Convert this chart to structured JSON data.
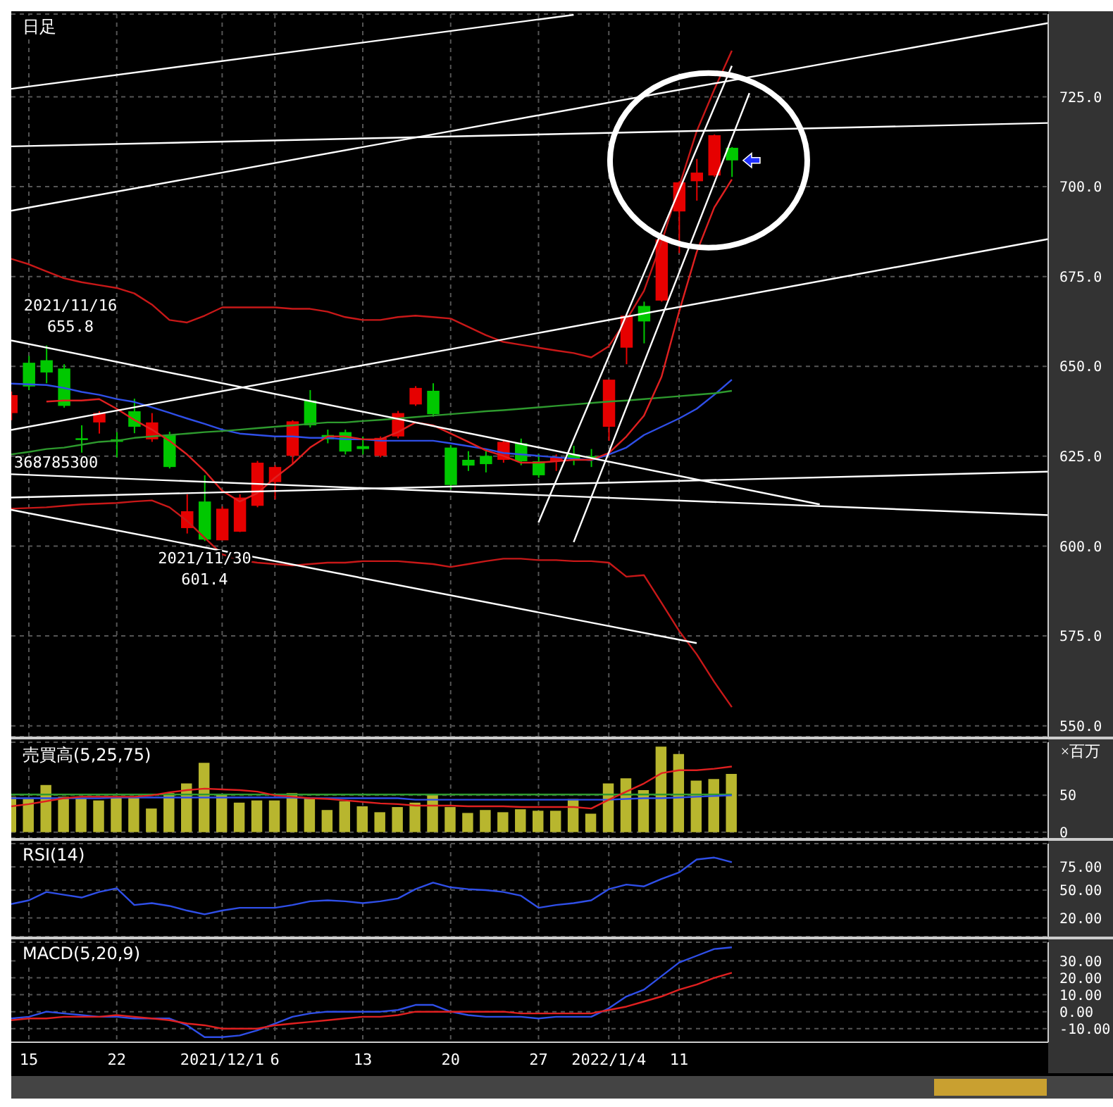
{
  "chart_data": [
    {
      "type": "candlestick",
      "title": "日足",
      "tick_labels": "y",
      "grid": true,
      "categories": [
        null,
        "15",
        null,
        null,
        null,
        null,
        "22",
        null,
        null,
        null,
        null,
        null,
        "2021/12/1",
        null,
        null,
        "6",
        null,
        null,
        null,
        null,
        "13",
        null,
        null,
        null,
        null,
        "20",
        null,
        null,
        null,
        null,
        "27",
        null,
        null,
        null,
        "2022/1/4",
        null,
        null,
        null,
        "11",
        null,
        null,
        null,
        null,
        null,
        null,
        null,
        null,
        null,
        null,
        null,
        null,
        null,
        null,
        null,
        null,
        null,
        null,
        null,
        null,
        null
      ],
      "ohlc": [
        [
          637,
          643,
          635,
          642
        ],
        [
          651,
          652.9,
          643.4,
          644.4
        ],
        [
          651.7,
          655.8,
          645.3,
          648.3
        ],
        [
          649.4,
          650.6,
          638.5,
          639
        ],
        [
          630,
          633.6,
          626,
          629.5
        ],
        [
          634.4,
          637.5,
          631.3,
          637
        ],
        [
          629.7,
          631.7,
          624.7,
          629
        ],
        [
          637.5,
          641,
          631.4,
          633.2
        ],
        [
          629.7,
          637,
          629,
          634.4
        ],
        [
          630.9,
          631.8,
          621.6,
          622
        ],
        [
          605,
          614.4,
          603.5,
          609.7
        ],
        [
          612.4,
          619.7,
          601.4,
          601.8
        ],
        [
          601.6,
          611,
          601.6,
          610.4
        ],
        [
          604,
          614.4,
          603.9,
          613.5
        ],
        [
          611.2,
          623.7,
          610.8,
          623.2
        ],
        [
          617.8,
          622.5,
          613,
          622
        ],
        [
          625.1,
          635,
          622.8,
          634.7
        ],
        [
          640.5,
          643.4,
          633,
          633.6
        ],
        [
          630.9,
          632.4,
          628.6,
          629.7
        ],
        [
          631.7,
          632.4,
          625.5,
          626.3
        ],
        [
          627.8,
          630.5,
          625.5,
          627
        ],
        [
          625.1,
          630.5,
          624.7,
          630.1
        ],
        [
          630.5,
          637.6,
          630,
          637
        ],
        [
          639.4,
          644.5,
          639,
          644
        ],
        [
          643.2,
          645.3,
          636,
          636.7
        ],
        [
          627.4,
          628,
          615.8,
          617
        ],
        [
          624,
          626.4,
          620.9,
          622.4
        ],
        [
          625.1,
          626.4,
          620.5,
          622.8
        ],
        [
          624,
          629.7,
          623.2,
          629
        ],
        [
          628.6,
          629.9,
          622.5,
          623.6
        ],
        [
          623.6,
          625.6,
          619,
          619.7
        ],
        [
          623.6,
          625.5,
          620.9,
          624.7
        ],
        [
          625.5,
          627.9,
          622.5,
          624.3
        ],
        [
          625,
          627,
          622,
          624.6
        ],
        [
          633.2,
          646.3,
          629.3,
          646.3
        ],
        [
          655.2,
          664.5,
          650.6,
          664.1
        ],
        [
          666.8,
          668,
          656.4,
          662.5
        ],
        [
          668.3,
          686,
          668,
          685.3
        ],
        [
          693.1,
          701.5,
          681.5,
          701.2
        ],
        [
          701.5,
          707.7,
          696.1,
          703.9
        ],
        [
          703.1,
          714.5,
          702.7,
          714.3
        ],
        [
          710.8,
          711,
          702.7,
          707.3
        ],
        null,
        null,
        null,
        null,
        null,
        null,
        null,
        null,
        null,
        null,
        null,
        null,
        null,
        null,
        null,
        null,
        null,
        null
      ],
      "colors": [
        "#e60000",
        "#00c800",
        "#00c800",
        "#00c800",
        "#00c800",
        "#e60000",
        "#00c800",
        "#00c800",
        "#e60000",
        "#00c800",
        "#e60000",
        "#00c800",
        "#e60000",
        "#e60000",
        "#e60000",
        "#e60000",
        "#e60000",
        "#00c800",
        "#00c800",
        "#00c800",
        "#00c800",
        "#e60000",
        "#e60000",
        "#e60000",
        "#00c800",
        "#00c800",
        "#00c800",
        "#00c800",
        "#e60000",
        "#00c800",
        "#00c800",
        "#e60000",
        "#00c800",
        "#00c800",
        "#e60000",
        "#e60000",
        "#00c800",
        "#e60000",
        "#e60000",
        "#e60000",
        "#e60000",
        "#00c800",
        null,
        null,
        null,
        null,
        null,
        null,
        null,
        null,
        null,
        null,
        null,
        null,
        null,
        null,
        null,
        null,
        null,
        null
      ],
      "series": [
        {
          "type": "line",
          "color": "#2f4fe8",
          "values": [
            645.2,
            645.0,
            644.8,
            644.0,
            642.9,
            642.1,
            640.9,
            640.1,
            638.6,
            637.1,
            635.5,
            634.0,
            632.4,
            631.3,
            630.9,
            630.5,
            630.5,
            630.1,
            630.1,
            629.7,
            629.7,
            629.3,
            629.3,
            629.3,
            629.3,
            628.6,
            627.8,
            627.0,
            625.9,
            625.5,
            625.1,
            624.7,
            624.3,
            623.9,
            625.5,
            627.4,
            630.9,
            633.2,
            635.5,
            638.2,
            642.1,
            646.3,
            null,
            null,
            null,
            null,
            null,
            null,
            null,
            null,
            null,
            null,
            null,
            null,
            null,
            null,
            null,
            null,
            null,
            null
          ]
        },
        {
          "type": "line",
          "color": "#2e9a2e",
          "values": [
            625.5,
            626.2,
            627.0,
            627.4,
            628.2,
            629.0,
            629.3,
            630.1,
            630.5,
            630.9,
            631.3,
            631.7,
            632.0,
            632.4,
            632.8,
            633.2,
            633.6,
            634.0,
            634.4,
            634.4,
            634.8,
            635.1,
            635.5,
            635.9,
            636.3,
            636.7,
            637.1,
            637.5,
            637.8,
            638.2,
            638.6,
            639.0,
            639.4,
            639.8,
            640.2,
            640.5,
            640.9,
            641.3,
            641.7,
            642.1,
            642.5,
            643.2,
            null,
            null,
            null,
            null,
            null,
            null,
            null,
            null,
            null,
            null,
            null,
            null,
            null,
            null,
            null,
            null,
            null,
            null
          ]
        },
        {
          "type": "line",
          "color": "#e02020",
          "values": [
            null,
            null,
            640.2,
            640.5,
            640.5,
            640.9,
            638.2,
            635.1,
            632.4,
            629.3,
            625.5,
            620.9,
            615.4,
            612.4,
            614.7,
            619.0,
            622.8,
            627.4,
            630.5,
            630.5,
            629.7,
            629.7,
            631.7,
            634.4,
            633.6,
            631.3,
            629.0,
            626.6,
            625.1,
            623.2,
            623.2,
            623.6,
            624.0,
            624.0,
            625.9,
            630.5,
            636.3,
            647.1,
            665.2,
            681.8,
            694.2,
            702.0,
            null,
            null,
            null,
            null,
            null,
            null,
            null,
            null,
            null,
            null,
            null,
            null,
            null,
            null,
            null,
            null,
            null,
            null
          ]
        },
        {
          "type": "line",
          "color": "#c81818",
          "values": [
            679.9,
            678.4,
            676.4,
            674.5,
            673.4,
            672.6,
            671.8,
            670.3,
            667.2,
            662.9,
            662.2,
            664.1,
            666.4,
            666.4,
            666.4,
            666.4,
            666.0,
            666.0,
            665.2,
            663.7,
            662.9,
            662.9,
            663.7,
            664.1,
            663.7,
            663.3,
            661.0,
            658.7,
            656.8,
            656.0,
            655.2,
            654.4,
            653.7,
            652.5,
            655.6,
            662.9,
            671.0,
            684.5,
            700.0,
            715.4,
            727.0,
            737.8,
            null,
            null,
            null,
            null,
            null,
            null,
            null,
            null,
            null,
            null,
            null,
            null,
            null,
            null,
            null,
            null,
            null,
            null
          ]
        },
        {
          "type": "line",
          "color": "#c81818",
          "values": [
            610.4,
            610.6,
            610.8,
            611.2,
            611.6,
            611.8,
            612.0,
            612.4,
            612.7,
            610.8,
            607.0,
            602.3,
            597.7,
            596.1,
            595.4,
            595.0,
            594.6,
            595.0,
            595.4,
            595.4,
            595.8,
            595.8,
            595.8,
            595.4,
            595.0,
            594.2,
            595.0,
            595.8,
            596.5,
            596.5,
            596.1,
            596.1,
            595.8,
            595.8,
            595.4,
            591.5,
            591.9,
            584.2,
            576.4,
            569.9,
            562.2,
            555.2,
            null,
            null,
            null,
            null,
            null,
            null,
            null,
            null,
            null,
            null,
            null,
            null,
            null,
            null,
            null,
            null,
            null,
            null
          ]
        },
        {
          "type": "line",
          "color": "#ffffff",
          "values": [
            727.2,
            null,
            null,
            null,
            null,
            null,
            null,
            null,
            null,
            null,
            null,
            null,
            null,
            null,
            null,
            null,
            null,
            null,
            null,
            null,
            null,
            null,
            null,
            null,
            null,
            null,
            null,
            null,
            null,
            null,
            null,
            null,
            747.8,
            null,
            null,
            null,
            null,
            null,
            null,
            null,
            null,
            null,
            null,
            null,
            null,
            null,
            null,
            null,
            null,
            null,
            null,
            null,
            null,
            null,
            null,
            null,
            null,
            null,
            null,
            null
          ]
        },
        {
          "type": "line",
          "color": "#ffffff",
          "values": [
            693.3,
            null,
            null,
            null,
            null,
            null,
            null,
            null,
            null,
            null,
            null,
            null,
            null,
            null,
            null,
            null,
            null,
            null,
            null,
            null,
            null,
            null,
            null,
            null,
            null,
            null,
            null,
            null,
            null,
            null,
            null,
            null,
            null,
            null,
            null,
            null,
            null,
            null,
            null,
            null,
            null,
            null,
            null,
            null,
            null,
            null,
            null,
            null,
            null,
            null,
            null,
            null,
            null,
            null,
            null,
            null,
            null,
            null,
            null,
            745.5
          ]
        },
        {
          "type": "line",
          "color": "#ffffff",
          "values": [
            711.2,
            null,
            null,
            null,
            null,
            null,
            null,
            null,
            null,
            null,
            null,
            null,
            null,
            null,
            null,
            null,
            null,
            null,
            null,
            null,
            null,
            null,
            null,
            null,
            null,
            null,
            null,
            null,
            null,
            null,
            null,
            null,
            null,
            null,
            null,
            null,
            null,
            null,
            null,
            null,
            null,
            null,
            null,
            null,
            null,
            null,
            null,
            null,
            null,
            null,
            null,
            null,
            null,
            null,
            null,
            null,
            null,
            null,
            null,
            717.7
          ]
        },
        {
          "type": "line",
          "color": "#ffffff",
          "values": [
            632.3,
            null,
            null,
            null,
            null,
            null,
            null,
            null,
            null,
            null,
            null,
            null,
            null,
            null,
            null,
            null,
            null,
            null,
            null,
            null,
            null,
            null,
            null,
            null,
            null,
            null,
            null,
            null,
            null,
            null,
            null,
            null,
            null,
            null,
            null,
            null,
            null,
            null,
            null,
            null,
            null,
            null,
            null,
            null,
            null,
            null,
            null,
            null,
            null,
            null,
            null,
            null,
            null,
            null,
            null,
            null,
            null,
            null,
            null,
            685.4
          ]
        },
        {
          "type": "line",
          "color": "#ffffff",
          "values": [
            657.2,
            null,
            null,
            null,
            null,
            null,
            null,
            null,
            null,
            null,
            null,
            null,
            null,
            null,
            null,
            null,
            null,
            null,
            null,
            null,
            null,
            null,
            null,
            null,
            null,
            null,
            null,
            null,
            null,
            null,
            null,
            null,
            null,
            null,
            null,
            null,
            null,
            null,
            null,
            null,
            null,
            null,
            null,
            null,
            null,
            null,
            611.6,
            null,
            null,
            null,
            null,
            null,
            null,
            null,
            null,
            null,
            null,
            null,
            null,
            null
          ]
        },
        {
          "type": "line",
          "color": "#ffffff",
          "values": [
            613.5,
            null,
            null,
            null,
            null,
            null,
            null,
            null,
            null,
            null,
            null,
            null,
            null,
            null,
            null,
            null,
            null,
            null,
            null,
            null,
            null,
            null,
            null,
            null,
            null,
            null,
            null,
            null,
            null,
            null,
            null,
            null,
            null,
            null,
            null,
            null,
            null,
            null,
            null,
            null,
            null,
            null,
            null,
            null,
            null,
            null,
            null,
            null,
            null,
            null,
            null,
            null,
            null,
            null,
            null,
            null,
            null,
            null,
            null,
            620.7
          ]
        },
        {
          "type": "line",
          "color": "#ffffff",
          "values": [
            620.0,
            null,
            null,
            null,
            null,
            null,
            null,
            null,
            null,
            null,
            null,
            null,
            null,
            null,
            null,
            null,
            null,
            null,
            null,
            null,
            null,
            null,
            null,
            null,
            null,
            null,
            null,
            null,
            null,
            null,
            null,
            null,
            null,
            null,
            null,
            null,
            null,
            null,
            null,
            null,
            null,
            null,
            null,
            null,
            null,
            null,
            null,
            null,
            null,
            null,
            null,
            null,
            null,
            null,
            null,
            null,
            null,
            null,
            null,
            608.6
          ]
        },
        {
          "type": "line",
          "color": "#ffffff",
          "values": [
            610.1,
            null,
            null,
            null,
            null,
            null,
            null,
            null,
            null,
            null,
            null,
            null,
            null,
            null,
            null,
            null,
            null,
            null,
            null,
            null,
            null,
            null,
            null,
            null,
            null,
            null,
            null,
            null,
            null,
            null,
            null,
            null,
            null,
            null,
            null,
            null,
            null,
            null,
            null,
            573.0,
            null,
            null,
            null,
            null,
            null,
            null,
            null,
            null,
            null,
            null,
            null,
            null,
            null,
            null,
            null,
            null,
            null,
            null,
            null,
            null
          ]
        },
        {
          "type": "line",
          "color": "#ffffff",
          "values": [
            null,
            null,
            null,
            null,
            null,
            null,
            null,
            null,
            null,
            null,
            null,
            null,
            null,
            null,
            null,
            null,
            null,
            null,
            null,
            null,
            null,
            null,
            null,
            null,
            null,
            null,
            null,
            null,
            null,
            null,
            606.6,
            null,
            null,
            null,
            null,
            null,
            null,
            null,
            null,
            null,
            null,
            733.6,
            null,
            null,
            null,
            null,
            null,
            null,
            null,
            null,
            null,
            null,
            null,
            null,
            null,
            null,
            null,
            null,
            null,
            null
          ]
        },
        {
          "type": "line",
          "color": "#ffffff",
          "values": [
            null,
            null,
            null,
            null,
            null,
            null,
            null,
            null,
            null,
            null,
            null,
            null,
            null,
            null,
            null,
            null,
            null,
            null,
            null,
            null,
            null,
            null,
            null,
            null,
            null,
            null,
            null,
            null,
            null,
            null,
            null,
            null,
            601.1,
            null,
            null,
            null,
            null,
            null,
            null,
            null,
            null,
            null,
            726.0,
            null,
            null,
            null,
            null,
            null,
            null,
            null,
            null,
            null,
            null,
            null,
            null,
            null,
            null,
            null,
            null,
            null
          ]
        }
      ],
      "ylim": [
        547,
        748
      ],
      "yticks": [
        {
          "value": 550,
          "label": "550.0"
        },
        {
          "value": 575,
          "label": "575.0"
        },
        {
          "value": 600,
          "label": "600.0"
        },
        {
          "value": 625,
          "label": "625.0"
        },
        {
          "value": 650,
          "label": "650.0"
        },
        {
          "value": 675,
          "label": "675.0"
        },
        {
          "value": 700,
          "label": "700.0"
        },
        {
          "value": 725,
          "label": "725.0"
        }
      ],
      "annotations": [
        {
          "text": "2021/11/16\n655.8",
          "y": 655.8
        },
        {
          "text": "2021/11/30\n601.4",
          "y": 601.4
        },
        "368785300"
      ]
    },
    {
      "type": "bar",
      "title": "売買高(5,25,75)",
      "ylabel": "×百万",
      "tick_labels": "y",
      "grid": true,
      "categories": [
        null,
        "15",
        null,
        null,
        null,
        null,
        "22",
        null,
        null,
        null,
        null,
        null,
        "2021/12/1",
        null,
        null,
        "6",
        null,
        null,
        null,
        null,
        "13",
        null,
        null,
        null,
        null,
        "20",
        null,
        null,
        null,
        null,
        "27",
        null,
        null,
        null,
        "2022/1/4",
        null,
        null,
        null,
        "11",
        null,
        null,
        null,
        null,
        null,
        null,
        null,
        null,
        null,
        null,
        null,
        null,
        null,
        null,
        null,
        null,
        null,
        null,
        null,
        null,
        null
      ],
      "series": [
        {
          "type": "bar",
          "color": "#b8b62e",
          "values": [
            48,
            45,
            64,
            48,
            46,
            43,
            48,
            48,
            32,
            53,
            66,
            94,
            52,
            40,
            43,
            43,
            53,
            46,
            30,
            42,
            35,
            27,
            34,
            40,
            52,
            34,
            26,
            30,
            27,
            31,
            29,
            29,
            45,
            25,
            66,
            73,
            57,
            116,
            106,
            70,
            72,
            79,
            null,
            null,
            null,
            null,
            null,
            null,
            null,
            null,
            null,
            null,
            null,
            null,
            null,
            null,
            null,
            null,
            null,
            null
          ]
        },
        {
          "type": "line",
          "color": "#2e9a2e",
          "values": [
            51,
            51,
            51,
            51,
            51,
            51,
            51,
            51,
            51,
            51,
            51,
            51,
            51,
            51,
            51,
            51,
            51,
            51,
            51,
            51,
            51,
            51,
            51,
            51,
            51,
            51,
            51,
            51,
            51,
            51,
            51,
            51,
            51,
            51,
            51,
            51,
            51,
            51,
            51,
            51,
            51,
            51,
            null,
            null,
            null,
            null,
            null,
            null,
            null,
            null,
            null,
            null,
            null,
            null,
            null,
            null,
            null,
            null,
            null,
            null
          ]
        },
        {
          "type": "line",
          "color": "#2f4fe8",
          "values": [
            46,
            46,
            46,
            46,
            46,
            46,
            47,
            47,
            47,
            47,
            47,
            47,
            47,
            47,
            47,
            47,
            47,
            46,
            46,
            46,
            46,
            46,
            46,
            44,
            44,
            44,
            44,
            44,
            44,
            44,
            44,
            44,
            44,
            44,
            44,
            45,
            46,
            46,
            47,
            48,
            49,
            50,
            null,
            null,
            null,
            null,
            null,
            null,
            null,
            null,
            null,
            null,
            null,
            null,
            null,
            null,
            null,
            null,
            null,
            null
          ]
        },
        {
          "type": "line",
          "color": "#e02020",
          "values": [
            35,
            38,
            42,
            46,
            48,
            48,
            48,
            48,
            50,
            54,
            57,
            59,
            58,
            57,
            55,
            50,
            48,
            46,
            45,
            43,
            41,
            39,
            38,
            36,
            36,
            36,
            35,
            35,
            35,
            34,
            34,
            34,
            34,
            32,
            44,
            55,
            66,
            80,
            84,
            84,
            86,
            89,
            null,
            null,
            null,
            null,
            null,
            null,
            null,
            null,
            null,
            null,
            null,
            null,
            null,
            null,
            null,
            null,
            null,
            null
          ]
        }
      ],
      "ylim": [
        -8,
        122
      ],
      "yticks": [
        0,
        50
      ]
    },
    {
      "type": "line",
      "title": "RSI(14)",
      "tick_labels": "y",
      "grid": true,
      "categories": [
        null,
        "15",
        null,
        null,
        null,
        null,
        "22",
        null,
        null,
        null,
        null,
        null,
        "2021/12/1",
        null,
        null,
        "6",
        null,
        null,
        null,
        null,
        "13",
        null,
        null,
        null,
        null,
        "20",
        null,
        null,
        null,
        null,
        "27",
        null,
        null,
        null,
        "2022/1/4",
        null,
        null,
        null,
        "11",
        null,
        null,
        null,
        null,
        null,
        null,
        null,
        null,
        null,
        null,
        null,
        null,
        null,
        null,
        null,
        null,
        null,
        null,
        null,
        null,
        null
      ],
      "series": [
        {
          "color": "#2f4fe8",
          "values": [
            35,
            39,
            48,
            45,
            42,
            48,
            52,
            34,
            36,
            33,
            28,
            24,
            28,
            31,
            31,
            31,
            34,
            38,
            39,
            38,
            36,
            38,
            41,
            51,
            58,
            53,
            51,
            50,
            48,
            44,
            31,
            34,
            36,
            39,
            51,
            56,
            54,
            62,
            69,
            83,
            85,
            80,
            null,
            null,
            null,
            null,
            null,
            null,
            null,
            null,
            null,
            null,
            null,
            null,
            null,
            null,
            null,
            null,
            null,
            null
          ]
        }
      ],
      "ylim": [
        0,
        100
      ],
      "yticks": [
        {
          "value": 20,
          "label": "20.00"
        },
        {
          "value": 50,
          "label": "50.00"
        },
        {
          "value": 75,
          "label": "75.00"
        }
      ]
    },
    {
      "type": "line",
      "title": "MACD(5,20,9)",
      "grid": true,
      "categories": [
        null,
        "15",
        null,
        null,
        null,
        null,
        "22",
        null,
        null,
        null,
        null,
        null,
        "2021/12/1",
        null,
        null,
        "6",
        null,
        null,
        null,
        null,
        "13",
        null,
        null,
        null,
        null,
        "20",
        null,
        null,
        null,
        null,
        "27",
        null,
        null,
        null,
        "2022/1/4",
        null,
        null,
        null,
        "11",
        null,
        null,
        null,
        null,
        null,
        null,
        null,
        null,
        null,
        null,
        null,
        null,
        null,
        null,
        null,
        null,
        null,
        null,
        null,
        null,
        null
      ],
      "series": [
        {
          "color": "#2f4fe8",
          "values": [
            -4,
            -3,
            0,
            -1,
            -2,
            -3,
            -3,
            -4,
            -4,
            -4,
            -8,
            -15,
            -15,
            -14,
            -11,
            -7,
            -3,
            -1,
            0,
            0,
            0,
            0,
            1,
            4,
            4,
            0,
            -2,
            -3,
            -3,
            -3,
            -4,
            -3,
            -3,
            -3,
            2,
            9,
            13,
            21,
            29,
            33,
            37,
            38,
            null,
            null,
            null,
            null,
            null,
            null,
            null,
            null,
            null,
            null,
            null,
            null,
            null,
            null,
            null,
            null,
            null,
            null
          ]
        },
        {
          "color": "#e02020",
          "values": [
            -5,
            -4,
            -4,
            -3,
            -3,
            -3,
            -2,
            -3,
            -4,
            -5,
            -7,
            -8,
            -10,
            -10,
            -10,
            -8,
            -7,
            -6,
            -5,
            -4,
            -3,
            -3,
            -2,
            0,
            0,
            0,
            0,
            0,
            0,
            -1,
            -1,
            -1,
            -1,
            -1,
            1,
            3,
            6,
            9,
            13,
            16,
            20,
            23,
            null,
            null,
            null,
            null,
            null,
            null,
            null,
            null,
            null,
            null,
            null,
            null,
            null,
            null,
            null,
            null,
            null,
            null
          ]
        }
      ],
      "ylim": [
        -18,
        41
      ],
      "yticks": [
        {
          "value": -10,
          "label": "-10.00"
        },
        {
          "value": 0,
          "label": "0.00"
        },
        {
          "value": 10,
          "label": "10.00"
        },
        {
          "value": 20,
          "label": "20.00"
        },
        {
          "value": 30,
          "label": "30.00"
        }
      ]
    }
  ]
}
